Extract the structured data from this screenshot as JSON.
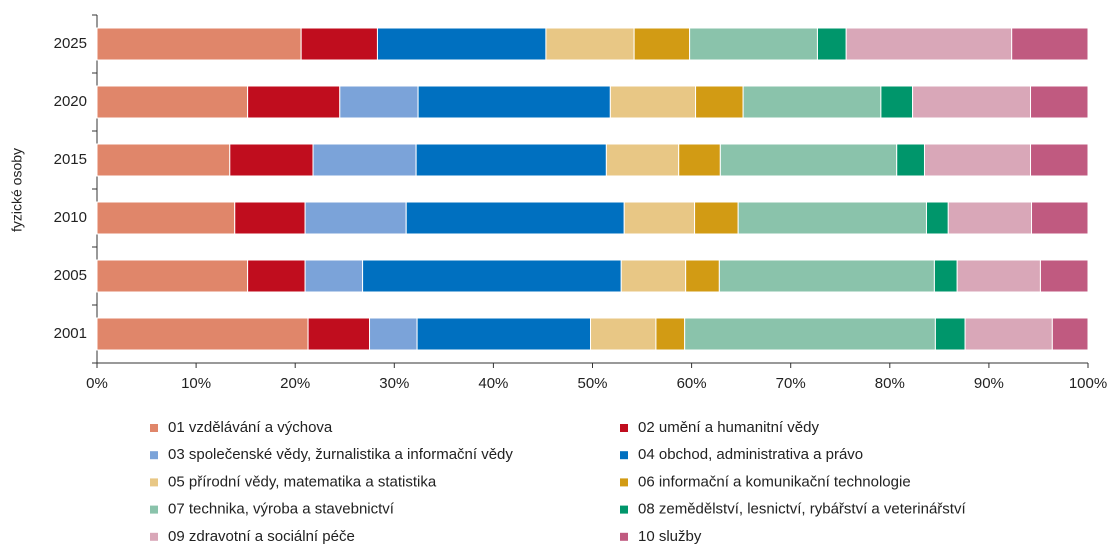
{
  "chart_data": {
    "type": "stacked-barh",
    "ylabel": "fyzické osoby",
    "categories": [
      "2025",
      "2020",
      "2015",
      "2010",
      "2005",
      "2001"
    ],
    "xlim": [
      0,
      100
    ],
    "xticks": [
      {
        "value": 0,
        "label": "0%"
      },
      {
        "value": 10,
        "label": "10%"
      },
      {
        "value": 20,
        "label": "20%"
      },
      {
        "value": 30,
        "label": "30%"
      },
      {
        "value": 40,
        "label": "40%"
      },
      {
        "value": 50,
        "label": "50%"
      },
      {
        "value": 60,
        "label": "60%"
      },
      {
        "value": 70,
        "label": "70%"
      },
      {
        "value": 80,
        "label": "80%"
      },
      {
        "value": 90,
        "label": "90%"
      },
      {
        "value": 100,
        "label": "100%"
      }
    ],
    "series": [
      {
        "name": "01 vzdělávání a výchova",
        "color": "#e0866a",
        "values": [
          20.6,
          15.2,
          13.4,
          13.9,
          15.2,
          21.3
        ]
      },
      {
        "name": "02 umění a humanitní vědy",
        "color": "#c00d1e",
        "values": [
          7.7,
          9.3,
          8.4,
          7.1,
          5.8,
          6.2
        ]
      },
      {
        "name": "03 společenské vědy, žurnalistika a informační vědy",
        "color": "#7ba3d9",
        "values": [
          0,
          7.9,
          10.4,
          10.2,
          5.8,
          4.8
        ]
      },
      {
        "name": "04 obchod, administrativa a právo",
        "color": "#0070c0",
        "values": [
          17.0,
          19.4,
          19.2,
          22.0,
          26.1,
          17.5
        ]
      },
      {
        "name": "05 přírodní vědy, matematika a statistika",
        "color": "#e8c785",
        "values": [
          8.9,
          8.6,
          7.3,
          7.1,
          6.5,
          6.6
        ]
      },
      {
        "name": "06 informační a komunikační technologie",
        "color": "#d29b14",
        "values": [
          5.6,
          4.8,
          4.2,
          4.4,
          3.4,
          2.9
        ]
      },
      {
        "name": "07 technika, výroba a stavebnictví",
        "color": "#8ac3ab",
        "values": [
          12.9,
          13.9,
          17.8,
          19.0,
          21.7,
          25.3
        ]
      },
      {
        "name": "08 zemědělství, lesnictví, rybářství a veterinářství",
        "color": "#00966b",
        "values": [
          2.9,
          3.2,
          2.8,
          2.2,
          2.3,
          3.0
        ]
      },
      {
        "name": "09 zdravotní a sociální péče",
        "color": "#d9a7b8",
        "values": [
          16.7,
          11.9,
          10.7,
          8.4,
          8.4,
          8.8
        ]
      },
      {
        "name": "10 služby",
        "color": "#c05a80",
        "values": [
          7.7,
          5.8,
          5.8,
          5.7,
          4.8,
          3.6
        ]
      }
    ]
  }
}
